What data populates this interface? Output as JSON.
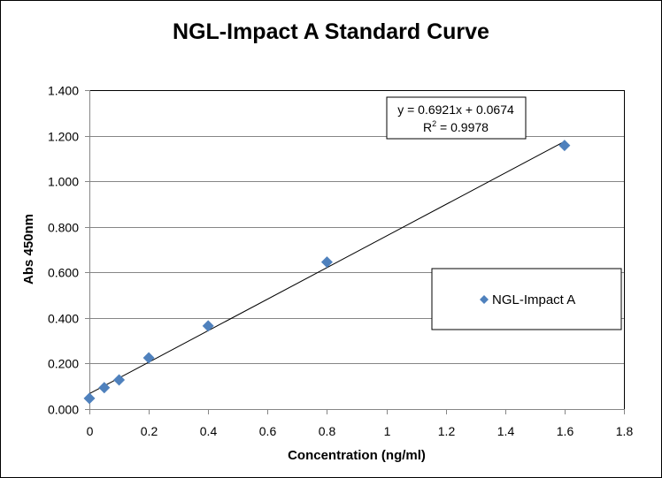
{
  "chart_data": {
    "type": "scatter",
    "title": "NGL-Impact A Standard Curve",
    "xlabel": "Concentration (ng/ml)",
    "ylabel": "Abs 450nm",
    "xlim": [
      0,
      1.8
    ],
    "ylim": [
      0,
      1.4
    ],
    "x_ticks": [
      "0",
      "0.2",
      "0.4",
      "0.6",
      "0.8",
      "1",
      "1.2",
      "1.4",
      "1.6",
      "1.8"
    ],
    "y_ticks": [
      "0.000",
      "0.200",
      "0.400",
      "0.600",
      "0.800",
      "1.000",
      "1.200",
      "1.400"
    ],
    "grid": "horizontal",
    "legend_position": "right",
    "series": [
      {
        "name": "NGL-Impact A",
        "color": "#4F81BD",
        "marker": "diamond",
        "x": [
          0,
          0.05,
          0.1,
          0.2,
          0.4,
          0.8,
          1.6
        ],
        "y": [
          0.047,
          0.094,
          0.128,
          0.225,
          0.365,
          0.645,
          1.157
        ]
      }
    ],
    "trendline": {
      "type": "linear",
      "slope": 0.6921,
      "intercept": 0.0674,
      "x_range": [
        0,
        1.6
      ],
      "equation_label": "y = 0.6921x + 0.0674",
      "r2_label_prefix": "R",
      "r2_label_sup": "2",
      "r2_label_value": " = 0.9978"
    }
  }
}
